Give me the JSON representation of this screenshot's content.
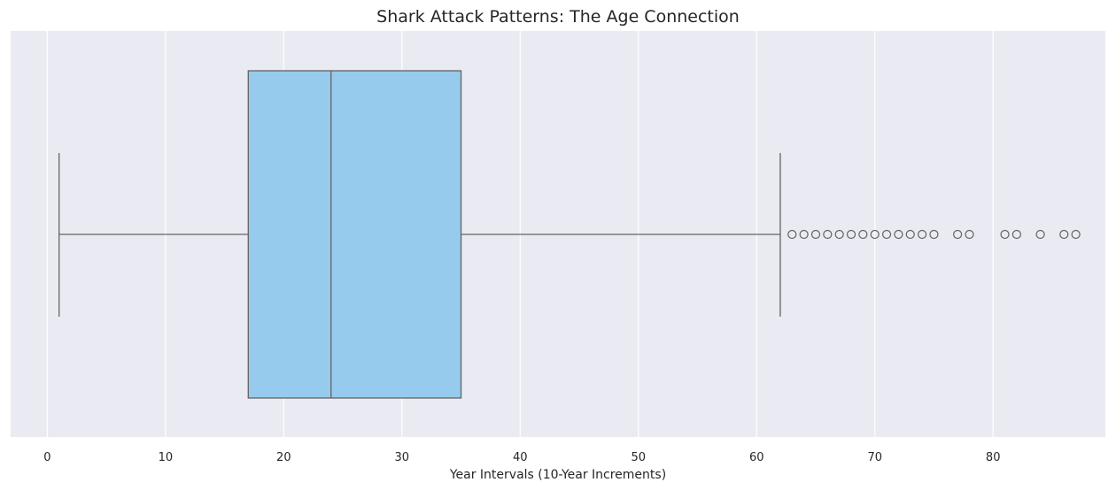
{
  "chart_data": {
    "type": "boxplot",
    "orientation": "horizontal",
    "title": "Shark Attack Patterns: The Age Connection",
    "xlabel": "Year Intervals (10-Year Increments)",
    "ylabel": "",
    "xlim": [
      -3.1,
      89.5
    ],
    "xticks": [
      0,
      10,
      20,
      30,
      40,
      50,
      60,
      70,
      80
    ],
    "xtick_labels": [
      "0",
      "10",
      "20",
      "30",
      "40",
      "50",
      "60",
      "70",
      "80"
    ],
    "grid": true,
    "legend": "none",
    "box": {
      "whisker_low": 1,
      "q1": 17,
      "median": 24,
      "q3": 35,
      "whisker_high": 62
    },
    "outliers": [
      63,
      64,
      65,
      66,
      67,
      68,
      69,
      70,
      71,
      72,
      73,
      74,
      75,
      77,
      78,
      81,
      82,
      84,
      86,
      87
    ]
  },
  "colors": {
    "plot_background": "#eaeaf2",
    "grid": "#ffffff",
    "box_fill": "#96cbee",
    "line": "#636363",
    "text": "#262626"
  }
}
